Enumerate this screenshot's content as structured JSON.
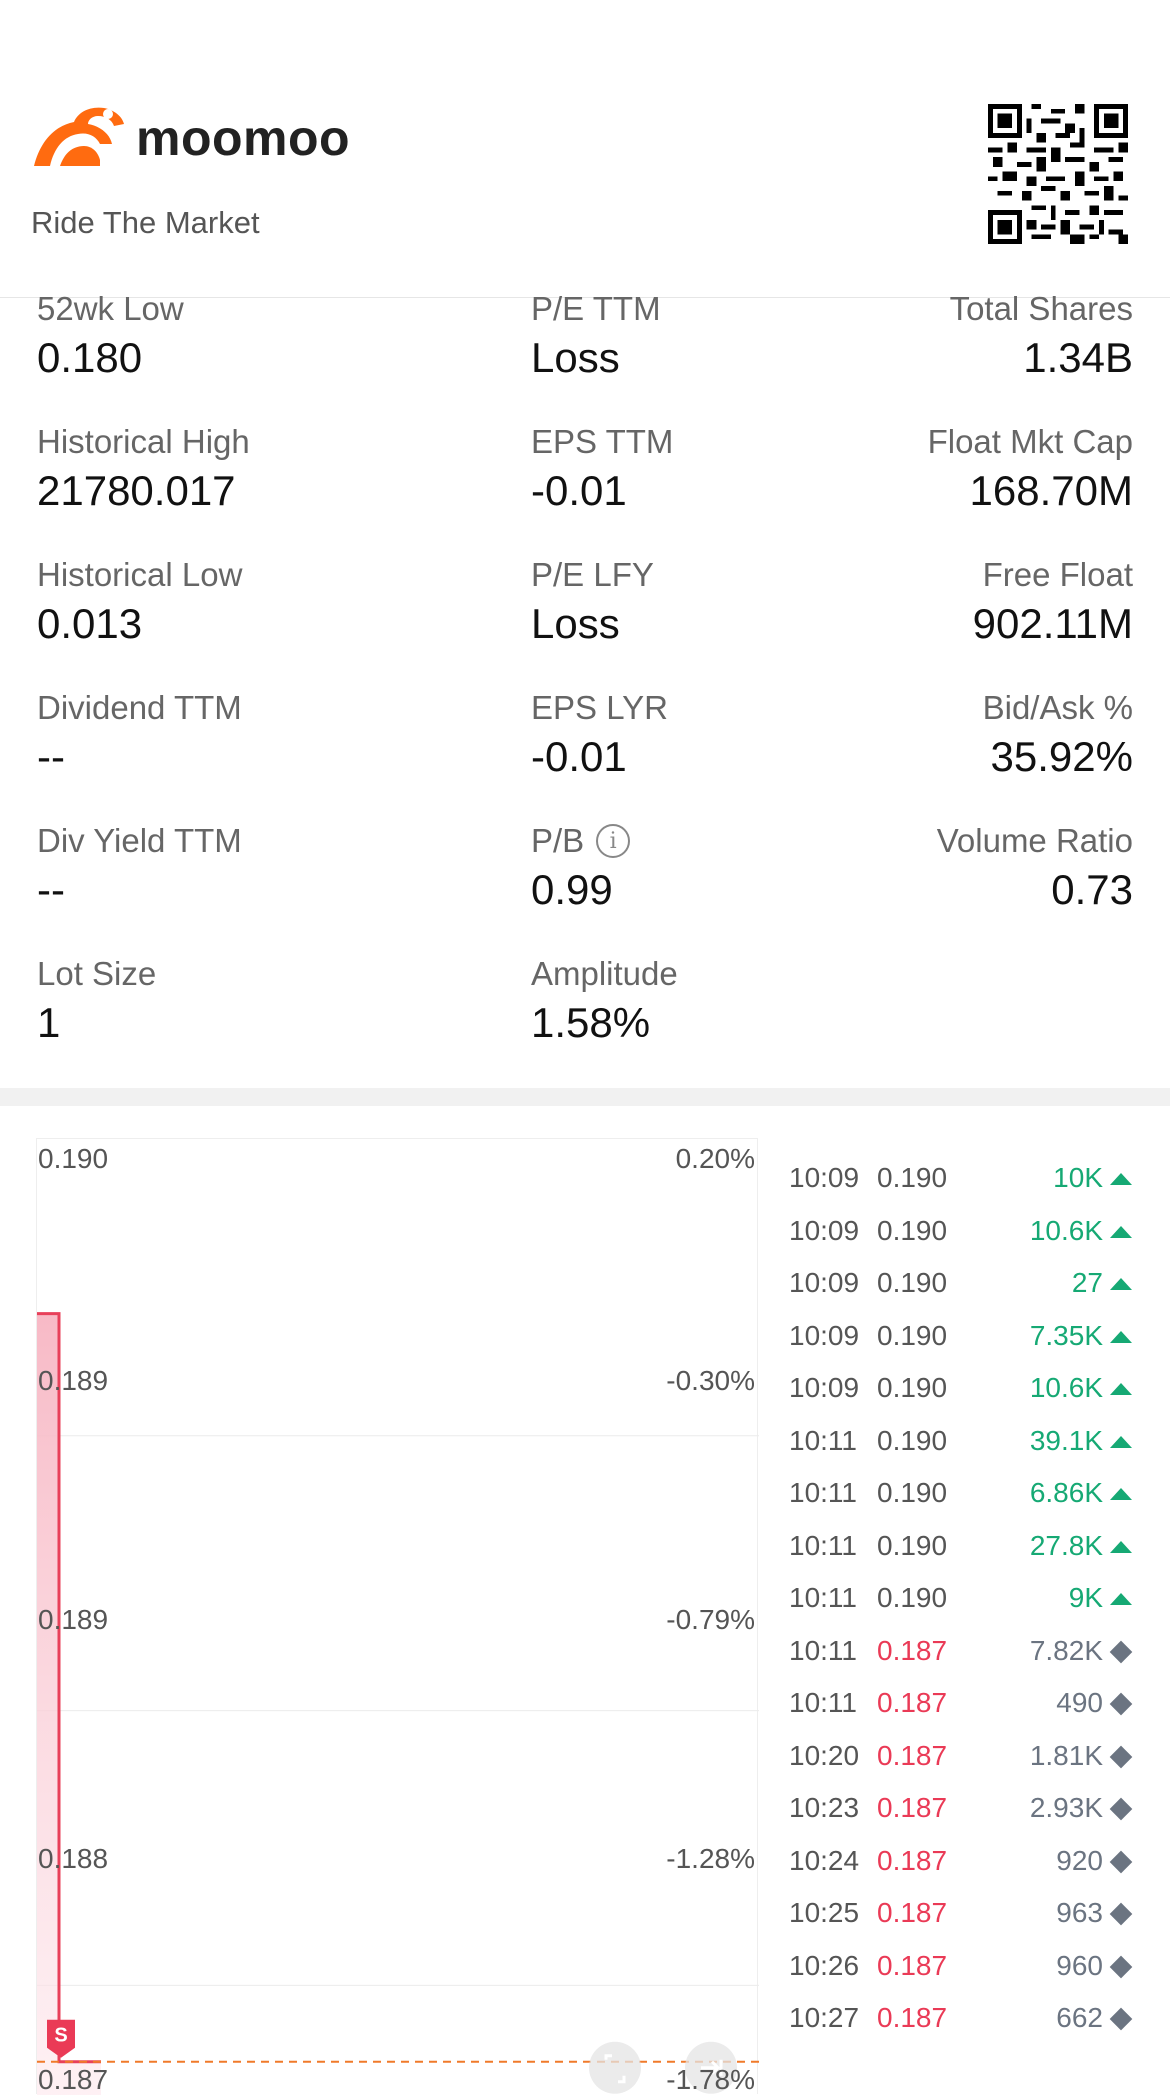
{
  "header": {
    "brand": "moomoo",
    "tagline": "Ride The Market"
  },
  "stats": [
    [
      {
        "label": "52wk Low",
        "value": "0.180"
      },
      {
        "label": "P/E TTM",
        "value": "Loss"
      },
      {
        "label": "Total Shares",
        "value": "1.34B"
      }
    ],
    [
      {
        "label": "Historical High",
        "value": "21780.017"
      },
      {
        "label": "EPS TTM",
        "value": "-0.01"
      },
      {
        "label": "Float Mkt Cap",
        "value": "168.70M"
      }
    ],
    [
      {
        "label": "Historical Low",
        "value": "0.013"
      },
      {
        "label": "P/E LFY",
        "value": "Loss"
      },
      {
        "label": "Free Float",
        "value": "902.11M"
      }
    ],
    [
      {
        "label": "Dividend TTM",
        "value": "--"
      },
      {
        "label": "EPS LYR",
        "value": "-0.01"
      },
      {
        "label": "Bid/Ask %",
        "value": "35.92%"
      }
    ],
    [
      {
        "label": "Div Yield TTM",
        "value": "--"
      },
      {
        "label": "P/B",
        "value": "0.99",
        "info_icon": "info-icon"
      },
      {
        "label": "Volume Ratio",
        "value": "0.73"
      }
    ],
    [
      {
        "label": "Lot Size",
        "value": "1"
      },
      {
        "label": "Amplitude",
        "value": "1.58%"
      },
      {
        "label": "",
        "value": ""
      }
    ]
  ],
  "chart": {
    "left_axis": [
      "0.190",
      "0.189",
      "0.189",
      "0.188",
      "0.187"
    ],
    "right_axis": [
      "0.20%",
      "-0.30%",
      "-0.79%",
      "-1.28%",
      "-1.78%"
    ],
    "marker_label": "S",
    "line_color": "#e8405a",
    "fill_color": "#f9c3cd",
    "ref_line_color": "#f07a2a"
  },
  "chart_data": {
    "type": "area",
    "title": "",
    "series": [
      {
        "values": [
          0.1895,
          0.1895,
          0.18705,
          0.18705
        ]
      }
    ],
    "ylim": [
      0.187,
      0.19
    ],
    "y_ticks": [
      "0.190",
      "0.189",
      "0.189",
      "0.188",
      "0.187"
    ],
    "y2_ticks": [
      "0.20%",
      "-0.30%",
      "-0.79%",
      "-1.28%",
      "-1.78%"
    ]
  },
  "ticks": [
    {
      "time": "10:09",
      "price": "0.190",
      "volume": "10K",
      "dir": "up"
    },
    {
      "time": "10:09",
      "price": "0.190",
      "volume": "10.6K",
      "dir": "up"
    },
    {
      "time": "10:09",
      "price": "0.190",
      "volume": "27",
      "dir": "up"
    },
    {
      "time": "10:09",
      "price": "0.190",
      "volume": "7.35K",
      "dir": "up"
    },
    {
      "time": "10:09",
      "price": "0.190",
      "volume": "10.6K",
      "dir": "up"
    },
    {
      "time": "10:11",
      "price": "0.190",
      "volume": "39.1K",
      "dir": "up"
    },
    {
      "time": "10:11",
      "price": "0.190",
      "volume": "6.86K",
      "dir": "up"
    },
    {
      "time": "10:11",
      "price": "0.190",
      "volume": "27.8K",
      "dir": "up"
    },
    {
      "time": "10:11",
      "price": "0.190",
      "volume": "9K",
      "dir": "up"
    },
    {
      "time": "10:11",
      "price": "0.187",
      "volume": "7.82K",
      "dir": "neutral"
    },
    {
      "time": "10:11",
      "price": "0.187",
      "volume": "490",
      "dir": "neutral"
    },
    {
      "time": "10:20",
      "price": "0.187",
      "volume": "1.81K",
      "dir": "neutral"
    },
    {
      "time": "10:23",
      "price": "0.187",
      "volume": "2.93K",
      "dir": "neutral"
    },
    {
      "time": "10:24",
      "price": "0.187",
      "volume": "920",
      "dir": "neutral"
    },
    {
      "time": "10:25",
      "price": "0.187",
      "volume": "963",
      "dir": "neutral"
    },
    {
      "time": "10:26",
      "price": "0.187",
      "volume": "960",
      "dir": "neutral"
    },
    {
      "time": "10:27",
      "price": "0.187",
      "volume": "662",
      "dir": "neutral"
    }
  ]
}
